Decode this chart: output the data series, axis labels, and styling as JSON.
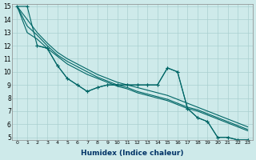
{
  "xlabel": "Humidex (Indice chaleur)",
  "bg_color": "#ceeaea",
  "grid_color": "#aacfcf",
  "line_color": "#006666",
  "xlim": [
    -0.5,
    23.5
  ],
  "ylim": [
    4.8,
    15.2
  ],
  "xticks": [
    0,
    1,
    2,
    3,
    4,
    5,
    6,
    7,
    8,
    9,
    10,
    11,
    12,
    13,
    14,
    15,
    16,
    17,
    18,
    19,
    20,
    21,
    22,
    23
  ],
  "yticks": [
    5,
    6,
    7,
    8,
    9,
    10,
    11,
    12,
    13,
    14,
    15
  ],
  "smooth_lines": [
    [
      15.0,
      14.0,
      13.0,
      12.2,
      11.5,
      11.0,
      10.6,
      10.2,
      9.8,
      9.5,
      9.2,
      9.0,
      8.8,
      8.6,
      8.4,
      8.2,
      7.9,
      7.6,
      7.3,
      7.0,
      6.7,
      6.4,
      6.1,
      5.8
    ],
    [
      15.0,
      13.5,
      12.8,
      12.0,
      11.3,
      10.8,
      10.4,
      10.0,
      9.6,
      9.3,
      9.0,
      8.8,
      8.5,
      8.3,
      8.1,
      7.9,
      7.6,
      7.3,
      7.1,
      6.8,
      6.5,
      6.2,
      5.9,
      5.6
    ],
    [
      15.0,
      13.0,
      12.5,
      11.8,
      11.2,
      10.6,
      10.2,
      9.8,
      9.5,
      9.2,
      8.9,
      8.7,
      8.4,
      8.2,
      8.0,
      7.8,
      7.5,
      7.2,
      7.0,
      6.7,
      6.4,
      6.1,
      5.8,
      5.5
    ]
  ],
  "marker_line1": {
    "x": [
      0,
      1,
      2,
      3,
      4,
      5,
      6,
      7,
      8,
      9,
      10,
      11,
      12,
      13,
      14,
      15,
      16,
      17,
      18,
      19,
      20,
      21,
      22,
      23
    ],
    "y": [
      15,
      15,
      12,
      11.8,
      10.5,
      9.5,
      9.0,
      8.5,
      8.8,
      9.0,
      9.0,
      9.0,
      9.0,
      9.0,
      9.0,
      10.3,
      10.0,
      7.2,
      6.5,
      6.2,
      5.0,
      5.0,
      4.8,
      4.8
    ]
  },
  "marker_line2": {
    "x": [
      2,
      3,
      4,
      5,
      6,
      7,
      8,
      9,
      10,
      11,
      12,
      13,
      14,
      15,
      16,
      17,
      18,
      19,
      20,
      21,
      22,
      23
    ],
    "y": [
      12,
      11.8,
      10.5,
      9.5,
      9.0,
      8.5,
      8.8,
      9.0,
      9.0,
      9.0,
      9.0,
      9.0,
      9.0,
      10.3,
      10.0,
      7.2,
      6.5,
      6.2,
      5.0,
      5.0,
      4.8,
      4.8
    ]
  }
}
